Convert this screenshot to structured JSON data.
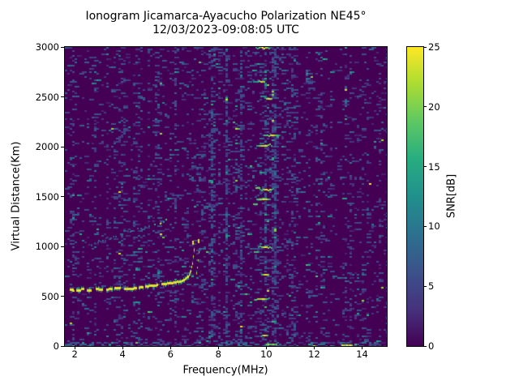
{
  "chart_data": {
    "type": "heatmap",
    "title": "Ionogram Jicamarca-Ayacucho Polarization NE45°",
    "subtitle": "12/03/2023-09:08:05 UTC",
    "xlabel": "Frequency(MHz)",
    "ylabel": "Virtual Distance(Km)",
    "xlim": [
      1.59,
      15.03
    ],
    "ylim": [
      0,
      3000
    ],
    "x_ticks": [
      2,
      4,
      6,
      8,
      10,
      12,
      14
    ],
    "y_ticks": [
      0,
      500,
      1000,
      1500,
      2000,
      2500,
      3000
    ],
    "grid": false,
    "colorbar": {
      "label": "SNR[dB]",
      "min": 0,
      "max": 25,
      "ticks": [
        0,
        5,
        10,
        15,
        20,
        25
      ]
    },
    "colormap": {
      "name": "viridis",
      "stops": [
        "#440154",
        "#46327e",
        "#3b528b",
        "#2c718e",
        "#21908d",
        "#27ad81",
        "#5dc863",
        "#aadc32",
        "#fde725"
      ]
    },
    "background_snr_db": 0,
    "noise_speckle": {
      "base_density": 0.11,
      "snr_low_db": 2,
      "snr_high_db": 25
    },
    "noise_bands": [
      {
        "f0": 1.59,
        "f1": 2.15,
        "boost": 1.3,
        "striped": false
      },
      {
        "f0": 7.1,
        "f1": 9.45,
        "boost": 1.8,
        "striped": true
      },
      {
        "f0": 9.45,
        "f1": 10.45,
        "boost": 1.8,
        "striped": false
      },
      {
        "f0": 9.95,
        "f1": 10.4,
        "boost": 2.4,
        "striped": false
      },
      {
        "f0": 10.55,
        "f1": 11.2,
        "boost": 1.5,
        "striped": false
      },
      {
        "f0": 13.9,
        "f1": 15.03,
        "boost": 1.3,
        "striped": false
      }
    ],
    "traces": [
      {
        "name": "F-layer echo O-mode",
        "snr_db": 25,
        "faint": false,
        "points": [
          [
            1.8,
            560
          ],
          [
            2.2,
            562
          ],
          [
            2.6,
            565
          ],
          [
            3.0,
            568
          ],
          [
            3.4,
            572
          ],
          [
            3.8,
            576
          ],
          [
            4.2,
            581
          ],
          [
            4.6,
            587
          ],
          [
            5.0,
            595
          ],
          [
            5.4,
            606
          ],
          [
            5.8,
            619
          ],
          [
            6.1,
            633
          ],
          [
            6.4,
            653
          ],
          [
            6.6,
            676
          ],
          [
            6.75,
            706
          ],
          [
            6.85,
            762
          ],
          [
            6.92,
            845
          ],
          [
            6.97,
            935
          ],
          [
            7.0,
            1005
          ]
        ]
      },
      {
        "name": "F-layer echo X-mode",
        "snr_db": 24,
        "faint": false,
        "points": [
          [
            7.08,
            735
          ],
          [
            7.12,
            800
          ],
          [
            7.15,
            870
          ],
          [
            7.18,
            945
          ],
          [
            7.2,
            1030
          ]
        ]
      },
      {
        "name": "second reflection",
        "snr_db": 8,
        "faint": true,
        "points": [
          [
            2.3,
            1005
          ],
          [
            2.7,
            1035
          ],
          [
            3.1,
            1060
          ],
          [
            3.5,
            1090
          ],
          [
            3.9,
            1120
          ],
          [
            4.3,
            1150
          ],
          [
            4.7,
            1180
          ],
          [
            5.1,
            1205
          ],
          [
            5.5,
            1235
          ],
          [
            5.85,
            1260
          ]
        ]
      }
    ],
    "cusp_fragments": [
      {
        "f": 6.9,
        "km": 1035,
        "snr_db": 24
      },
      {
        "f": 7.15,
        "km": 1045,
        "snr_db": 24
      }
    ],
    "rfi_bursts": {
      "frequency_mhz": 10.0,
      "heights_km": [
        2990,
        2650,
        2480,
        2110,
        2010,
        1570,
        1470,
        995,
        715,
        470,
        105
      ],
      "snr_db": 25
    },
    "bottom_echoes": [
      {
        "f": 10.2,
        "km": 15,
        "snr_db": 22
      },
      {
        "f": 13.35,
        "km": 10,
        "snr_db": 25
      }
    ]
  }
}
